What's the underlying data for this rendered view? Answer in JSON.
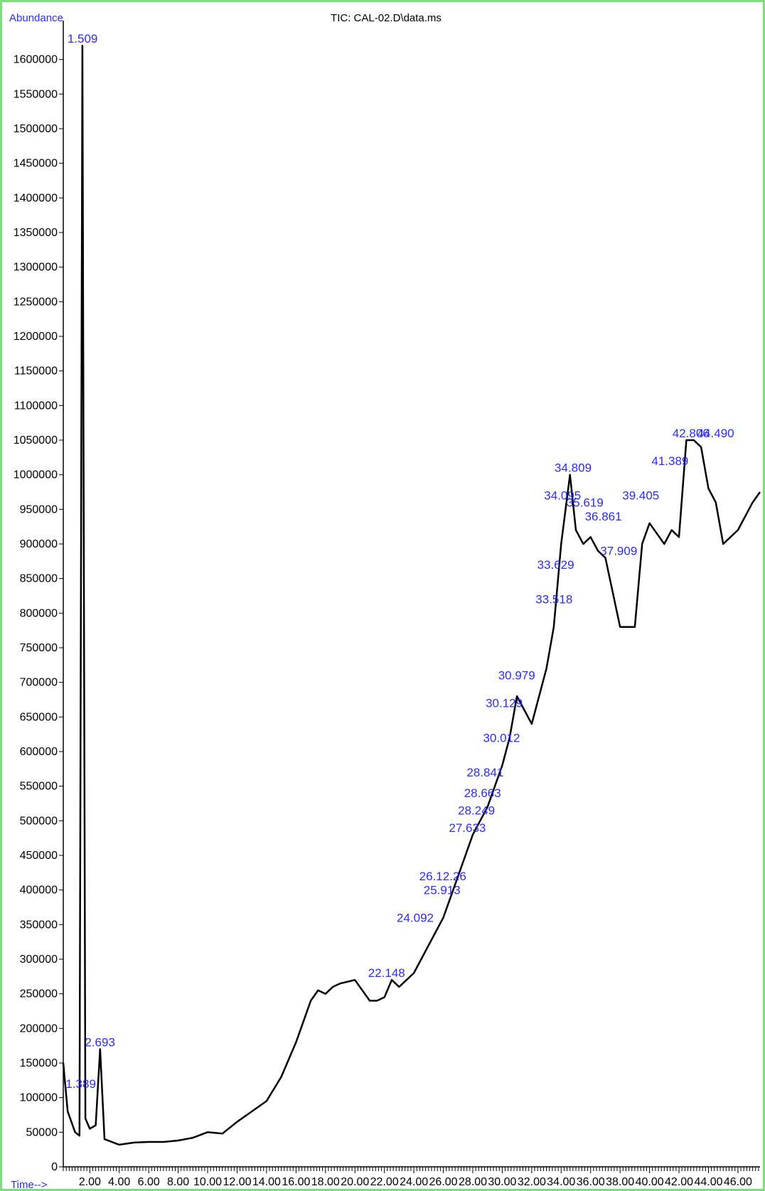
{
  "chart_data": {
    "type": "line",
    "title": "TIC: CAL-02.D\\data.ms",
    "ylabel": "Abundance",
    "xlabel": "Time-->",
    "xlim": [
      0.2,
      47.5
    ],
    "ylim": [
      0,
      1650000
    ],
    "x_ticks": [
      2,
      4,
      6,
      8,
      10,
      12,
      14,
      16,
      18,
      20,
      22,
      24,
      26,
      28,
      30,
      32,
      34,
      36,
      38,
      40,
      42,
      44,
      46
    ],
    "x_tick_labels": [
      "2.00",
      "4.00",
      "6.00",
      "8.00",
      "10.00",
      "12.00",
      "14.00",
      "16.00",
      "18.00",
      "20.00",
      "22.00",
      "24.00",
      "26.00",
      "28.00",
      "30.00",
      "32.00",
      "34.00",
      "36.00",
      "38.00",
      "40.00",
      "42.00",
      "44.00",
      "46.00"
    ],
    "y_ticks": [
      0,
      50000,
      100000,
      150000,
      200000,
      250000,
      300000,
      350000,
      400000,
      450000,
      500000,
      550000,
      600000,
      650000,
      700000,
      750000,
      800000,
      850000,
      900000,
      950000,
      1000000,
      1050000,
      1100000,
      1150000,
      1200000,
      1250000,
      1300000,
      1350000,
      1400000,
      1450000,
      1500000,
      1550000,
      1600000
    ],
    "y_tick_labels": [
      "0",
      "50000",
      "100000",
      "150000",
      "200000",
      "250000",
      "300000",
      "350000",
      "400000",
      "450000",
      "500000",
      "550000",
      "600000",
      "650000",
      "700000",
      "750000",
      "800000",
      "850000",
      "900000",
      "950000",
      "1000000",
      "1050000",
      "1100000",
      "1150000",
      "1200000",
      "1250000",
      "1300000",
      "1350000",
      "1400000",
      "1450000",
      "1500000",
      "1550000",
      "1600000"
    ],
    "series": [
      {
        "color": "#000000",
        "x": [
          0.2,
          0.5,
          1.0,
          1.3,
          1.5,
          1.7,
          2.0,
          2.4,
          2.7,
          3.0,
          4.0,
          5.0,
          6.0,
          7.0,
          8.0,
          9.0,
          10.0,
          11.0,
          12.0,
          13.0,
          14.0,
          15.0,
          16.0,
          17.0,
          17.5,
          18.0,
          18.5,
          19.0,
          20.0,
          21.0,
          21.5,
          22.0,
          22.5,
          23.0,
          24.0,
          25.0,
          26.0,
          27.0,
          28.0,
          29.0,
          30.0,
          30.5,
          31.0,
          32.0,
          33.0,
          33.5,
          34.0,
          34.6,
          35.0,
          35.5,
          36.0,
          36.5,
          37.0,
          38.0,
          38.5,
          39.0,
          39.5,
          40.0,
          41.0,
          41.5,
          42.0,
          42.5,
          43.0,
          43.5,
          44.0,
          44.5,
          45.0,
          46.0,
          47.0,
          47.5
        ],
        "y": [
          150000,
          80000,
          50000,
          45000,
          1620000,
          70000,
          55000,
          60000,
          170000,
          40000,
          32000,
          35000,
          36000,
          36000,
          38000,
          42000,
          50000,
          48000,
          65000,
          80000,
          95000,
          130000,
          180000,
          240000,
          255000,
          250000,
          260000,
          265000,
          270000,
          240000,
          240000,
          245000,
          270000,
          260000,
          280000,
          320000,
          360000,
          420000,
          480000,
          520000,
          580000,
          620000,
          680000,
          640000,
          720000,
          780000,
          900000,
          1000000,
          920000,
          900000,
          910000,
          890000,
          880000,
          780000,
          780000,
          780000,
          900000,
          930000,
          900000,
          920000,
          910000,
          1050000,
          1050000,
          1040000,
          980000,
          960000,
          900000,
          920000,
          960000,
          975000
        ]
      }
    ],
    "peak_labels": [
      {
        "x": 1.509,
        "y": 1620000,
        "text": "1.509"
      },
      {
        "x": 1.389,
        "y": 110000,
        "text": "1.389"
      },
      {
        "x": 2.693,
        "y": 170000,
        "text": "2.693"
      },
      {
        "x": 22.148,
        "y": 270000,
        "text": "22.148"
      },
      {
        "x": 24.092,
        "y": 350000,
        "text": "24.092"
      },
      {
        "x": 25.913,
        "y": 390000,
        "text": "25.913"
      },
      {
        "x": 25.963,
        "y": 410000,
        "text": "26.12.26"
      },
      {
        "x": 27.633,
        "y": 480000,
        "text": "27.633"
      },
      {
        "x": 28.249,
        "y": 505000,
        "text": "28.249"
      },
      {
        "x": 28.663,
        "y": 530000,
        "text": "28.663"
      },
      {
        "x": 28.841,
        "y": 560000,
        "text": "28.841"
      },
      {
        "x": 29.953,
        "y": 610000,
        "text": "30.012"
      },
      {
        "x": 30.129,
        "y": 660000,
        "text": "30.129"
      },
      {
        "x": 30.979,
        "y": 700000,
        "text": "30.979"
      },
      {
        "x": 33.518,
        "y": 810000,
        "text": "33.518"
      },
      {
        "x": 33.629,
        "y": 860000,
        "text": "33.629"
      },
      {
        "x": 34.095,
        "y": 960000,
        "text": "34.095"
      },
      {
        "x": 34.809,
        "y": 1000000,
        "text": "34.809"
      },
      {
        "x": 35.619,
        "y": 950000,
        "text": "35.619"
      },
      {
        "x": 36.861,
        "y": 930000,
        "text": "36.861"
      },
      {
        "x": 37.909,
        "y": 880000,
        "text": "37.909"
      },
      {
        "x": 39.405,
        "y": 960000,
        "text": "39.405"
      },
      {
        "x": 41.389,
        "y": 1010000,
        "text": "41.389"
      },
      {
        "x": 42.806,
        "y": 1050000,
        "text": "42.806"
      },
      {
        "x": 44.49,
        "y": 1050000,
        "text": "44.490"
      }
    ]
  }
}
